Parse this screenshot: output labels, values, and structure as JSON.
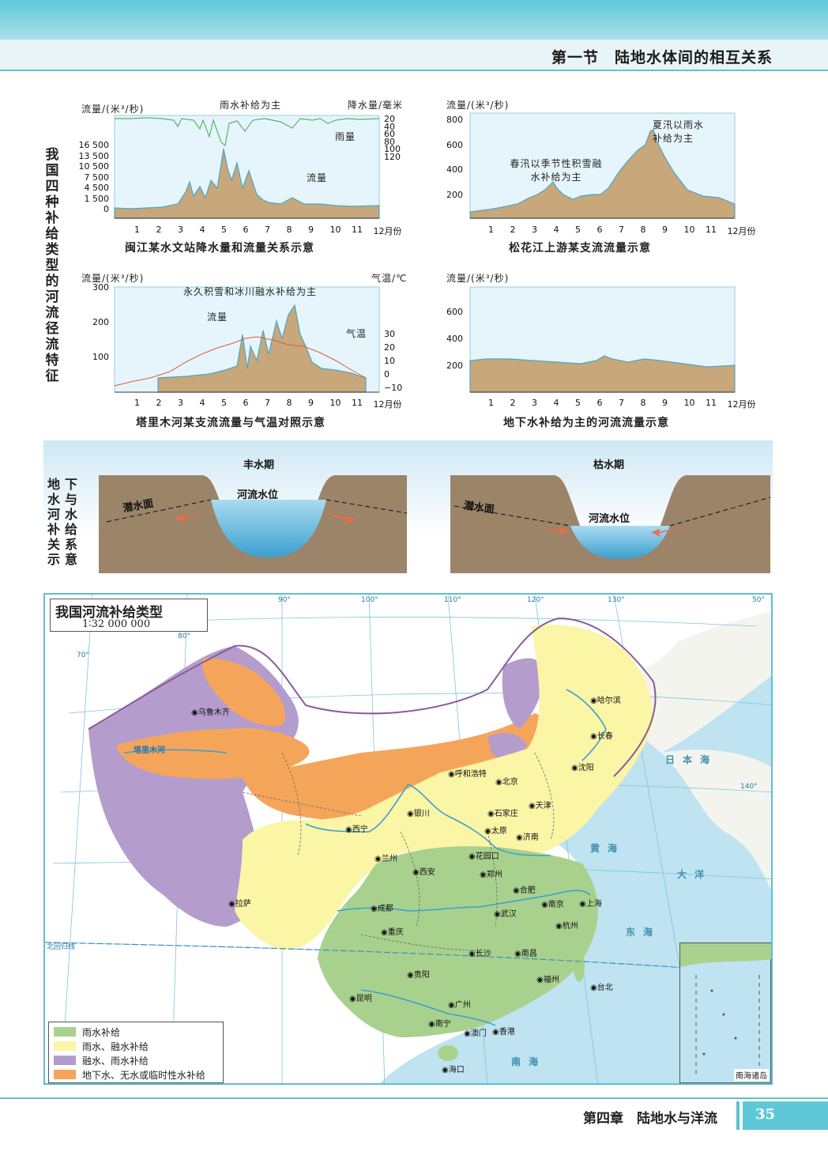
{
  "header": {
    "title": "第一节　陆地水体间的相互关系"
  },
  "side_labels": {
    "four_types": "我国四种补给类型的河流径流特征",
    "groundwater": "地下水与河水补给关系示意"
  },
  "charts": {
    "minjiang": {
      "ylabel_left": "流量/(米³/秒)",
      "ylabel_right": "降水量/毫米",
      "annotation": "雨水补给为主",
      "label_rain": "雨量",
      "label_flow": "流量",
      "left_ticks": [
        "16 500",
        "13 500",
        "10 500",
        "7 500",
        "4 500",
        "1 500",
        "0"
      ],
      "right_ticks": [
        "20",
        "40",
        "60",
        "80",
        "100",
        "120"
      ],
      "caption": "闽江某水文站降水量和流量关系示意"
    },
    "songhua": {
      "ylabel": "流量/(米³/秒)",
      "ticks": [
        "800",
        "600",
        "400",
        "200"
      ],
      "annotation1": "夏汛以雨水补给为主",
      "annotation2": "春汛以季节性积雪融水补给为主",
      "caption": "松花江上游某支流流量示意"
    },
    "tarim": {
      "ylabel_left": "流量/(米³/秒)",
      "ylabel_right": "气温/℃",
      "annotation": "永久积雪和冰川融水补给为主",
      "label_flow": "流量",
      "label_temp": "气温",
      "left_ticks": [
        "300",
        "200",
        "100"
      ],
      "right_ticks": [
        "30",
        "20",
        "10",
        "0",
        "−10"
      ],
      "caption": "塔里木河某支流流量与气温对照示意"
    },
    "groundwater": {
      "ylabel": "流量/(米³/秒)",
      "ticks": [
        "600",
        "400",
        "200"
      ],
      "caption": "地下水补给为主的河流流量示意"
    },
    "months": [
      "1",
      "2",
      "3",
      "4",
      "5",
      "6",
      "7",
      "8",
      "9",
      "10",
      "11",
      "12月份"
    ]
  },
  "diagram": {
    "wet_title": "丰水期",
    "dry_title": "枯水期",
    "water_table": "潜水面",
    "river_level": "河流水位"
  },
  "map": {
    "title": "我国河流补给类型",
    "scale": "1∶32 000 000",
    "legend": [
      {
        "label": "雨水补给",
        "color": "#a9d18e"
      },
      {
        "label": "雨水、融水补给",
        "color": "#fbf5a6"
      },
      {
        "label": "融水、雨水补给",
        "color": "#b49ccd"
      },
      {
        "label": "地下水、无水或临时性水补给",
        "color": "#f5a55a"
      }
    ],
    "cities": [
      "哈尔滨",
      "长春",
      "沈阳",
      "乌鲁木齐",
      "呼和浩特",
      "北京",
      "天津",
      "银川",
      "石家庄",
      "太原",
      "西宁",
      "兰州",
      "济南",
      "花园口",
      "郑州",
      "西安",
      "合肥",
      "南京",
      "上海",
      "拉萨",
      "成都",
      "武汉",
      "杭州",
      "重庆",
      "长沙",
      "南昌",
      "贵阳",
      "福州",
      "台北",
      "昆明",
      "南宁",
      "广州",
      "澳门",
      "香港",
      "海口"
    ],
    "seas": [
      "日本海",
      "黄海",
      "东海",
      "南海",
      "大洋"
    ],
    "rivers": [
      "塔里木河"
    ],
    "inset_label": "南海诸岛",
    "lon_labels": [
      "70°",
      "80°",
      "90°",
      "100°",
      "110°",
      "120°",
      "130°",
      "140°",
      "50°"
    ],
    "tropic": "北回归线"
  },
  "footer": {
    "chapter": "第四章　陆地水与洋流",
    "page": "35"
  }
}
